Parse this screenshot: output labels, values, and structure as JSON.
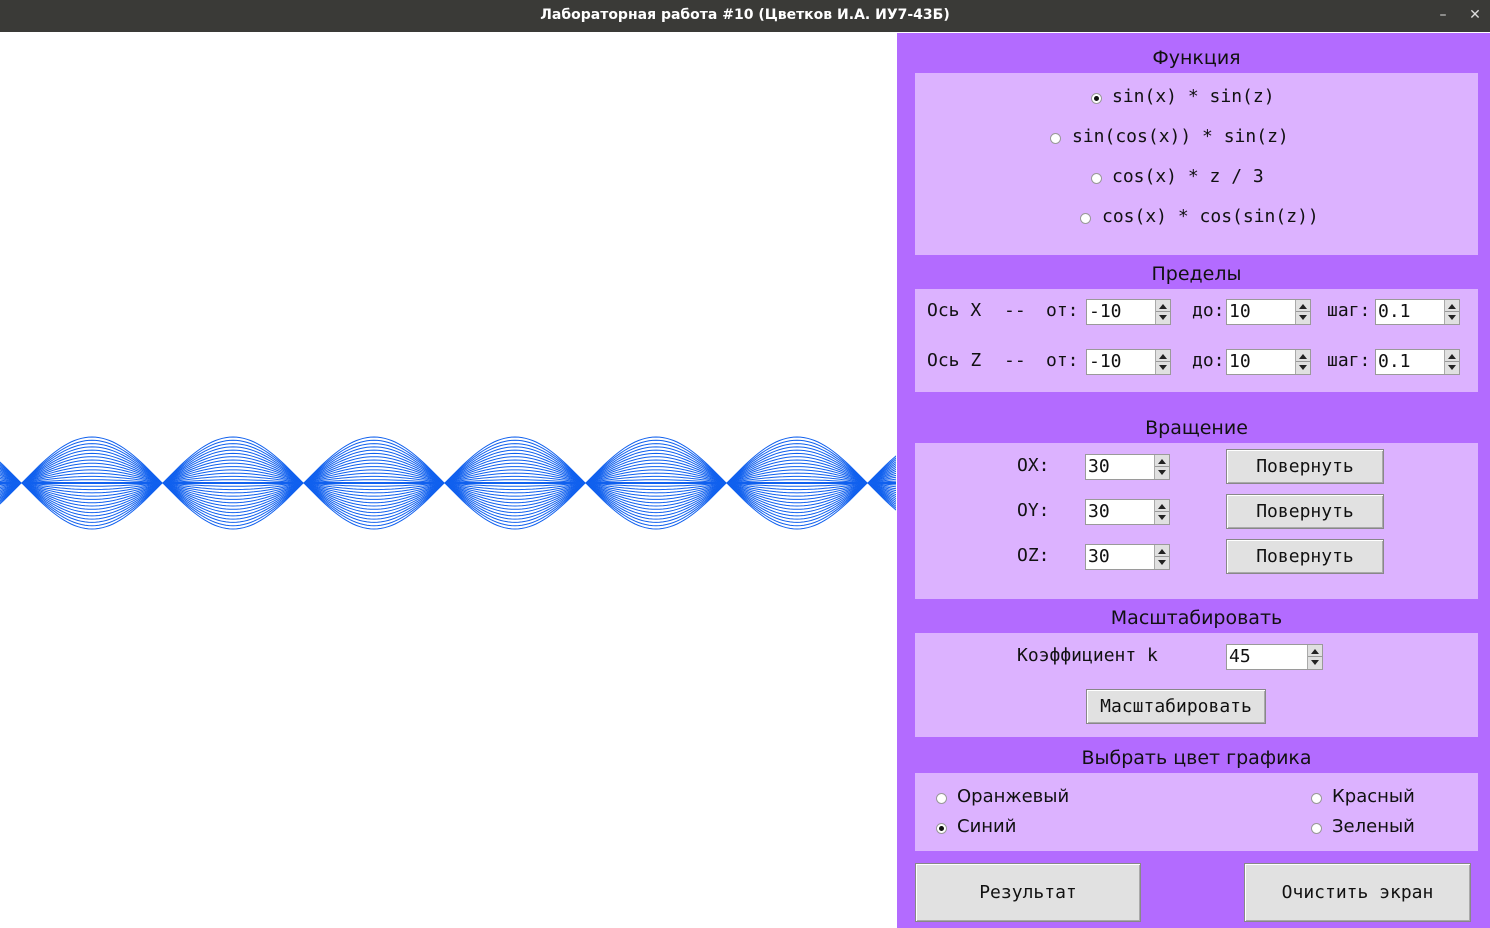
{
  "window": {
    "title": "Лабораторная работа #10 (Цветков И.А. ИУ7-43Б)",
    "minimize": "–",
    "close": "✕"
  },
  "plot": {
    "color": "#1060ee",
    "period_count": 6
  },
  "function_section": {
    "heading": "Функция",
    "options": [
      {
        "label": "sin(x) * sin(z)",
        "selected": true
      },
      {
        "label": "sin(cos(x)) * sin(z)",
        "selected": false
      },
      {
        "label": "cos(x) * z / 3",
        "selected": false
      },
      {
        "label": "cos(x) * cos(sin(z))",
        "selected": false
      }
    ]
  },
  "limits_section": {
    "heading": "Пределы",
    "rows": [
      {
        "axis": "Ось X",
        "sep": "--",
        "from_label": "от:",
        "from": "-10",
        "to_label": "до:",
        "to": "10",
        "step_label": "шаг:",
        "step": "0.1"
      },
      {
        "axis": "Ось Z",
        "sep": "--",
        "from_label": "от:",
        "from": "-10",
        "to_label": "до:",
        "to": "10",
        "step_label": "шаг:",
        "step": "0.1"
      }
    ]
  },
  "rotation_section": {
    "heading": "Вращение",
    "rows": [
      {
        "label": "OX:",
        "value": "30",
        "button": "Повернуть"
      },
      {
        "label": "OY:",
        "value": "30",
        "button": "Повернуть"
      },
      {
        "label": "OZ:",
        "value": "30",
        "button": "Повернуть"
      }
    ]
  },
  "scale_section": {
    "heading": "Масштабировать",
    "label": "Коэффициент k",
    "value": "45",
    "button": "Масштабировать"
  },
  "color_section": {
    "heading": "Выбрать цвет графика",
    "options": [
      {
        "label": "Оранжевый",
        "selected": false
      },
      {
        "label": "Синий",
        "selected": true
      },
      {
        "label": "Красный",
        "selected": false
      },
      {
        "label": "Зеленый",
        "selected": false
      }
    ]
  },
  "actions": {
    "result": "Результат",
    "clear": "Очистить экран"
  }
}
